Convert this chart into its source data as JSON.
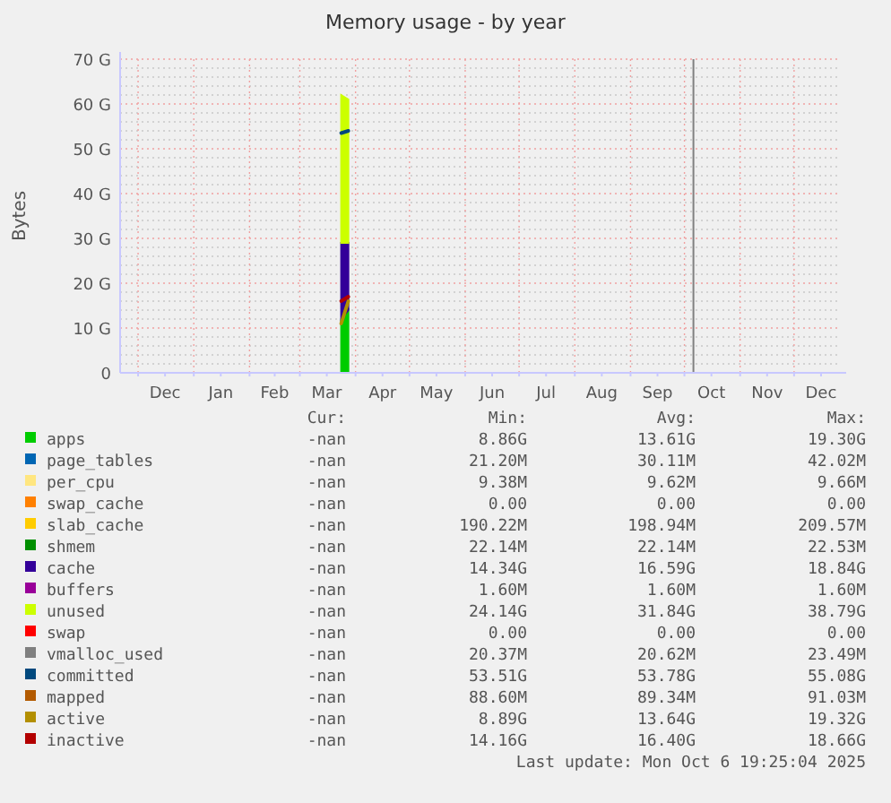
{
  "chart_data": {
    "type": "area",
    "stacked": true,
    "title": "Memory usage - by year",
    "ylabel": "Bytes",
    "x": [
      "2025-03-24",
      "2025-03-28"
    ],
    "xlim": [
      "2024-11-21",
      "2025-12-26"
    ],
    "xticks": [
      {
        "value": "2024-12-01",
        "label": null
      },
      {
        "value": "2024-12-16",
        "label": "Dec"
      },
      {
        "value": "2025-01-01",
        "label": null
      },
      {
        "value": "2025-01-16",
        "label": "Jan"
      },
      {
        "value": "2025-02-01",
        "label": null
      },
      {
        "value": "2025-02-15",
        "label": "Feb"
      },
      {
        "value": "2025-03-01",
        "label": null
      },
      {
        "value": "2025-03-16",
        "label": "Mar"
      },
      {
        "value": "2025-04-01",
        "label": null
      },
      {
        "value": "2025-04-16",
        "label": "Apr"
      },
      {
        "value": "2025-05-01",
        "label": null
      },
      {
        "value": "2025-05-16",
        "label": "May"
      },
      {
        "value": "2025-06-01",
        "label": null
      },
      {
        "value": "2025-06-16",
        "label": "Jun"
      },
      {
        "value": "2025-07-01",
        "label": null
      },
      {
        "value": "2025-07-16",
        "label": "Jul"
      },
      {
        "value": "2025-08-01",
        "label": null
      },
      {
        "value": "2025-08-16",
        "label": "Aug"
      },
      {
        "value": "2025-09-01",
        "label": null
      },
      {
        "value": "2025-09-16",
        "label": "Sep"
      },
      {
        "value": "2025-10-01",
        "label": null
      },
      {
        "value": "2025-10-16",
        "label": "Oct"
      },
      {
        "value": "2025-11-01",
        "label": null
      },
      {
        "value": "2025-11-16",
        "label": "Nov"
      },
      {
        "value": "2025-12-01",
        "label": null
      },
      {
        "value": "2025-12-16",
        "label": "Dec"
      }
    ],
    "ylim": [
      0,
      70
    ],
    "yticks": [
      {
        "value": 0,
        "label": "0"
      },
      {
        "value": 2,
        "label": null
      },
      {
        "value": 4,
        "label": null
      },
      {
        "value": 6,
        "label": null
      },
      {
        "value": 8,
        "label": null
      },
      {
        "value": 10,
        "label": "10 G"
      },
      {
        "value": 12,
        "label": null
      },
      {
        "value": 14,
        "label": null
      },
      {
        "value": 16,
        "label": null
      },
      {
        "value": 18,
        "label": null
      },
      {
        "value": 20,
        "label": "20 G"
      },
      {
        "value": 22,
        "label": null
      },
      {
        "value": 24,
        "label": null
      },
      {
        "value": 26,
        "label": null
      },
      {
        "value": 28,
        "label": null
      },
      {
        "value": 30,
        "label": "30 G"
      },
      {
        "value": 32,
        "label": null
      },
      {
        "value": 34,
        "label": null
      },
      {
        "value": 36,
        "label": null
      },
      {
        "value": 38,
        "label": null
      },
      {
        "value": 40,
        "label": "40 G"
      },
      {
        "value": 42,
        "label": null
      },
      {
        "value": 44,
        "label": null
      },
      {
        "value": 46,
        "label": null
      },
      {
        "value": 48,
        "label": null
      },
      {
        "value": 50,
        "label": "50 G"
      },
      {
        "value": 52,
        "label": null
      },
      {
        "value": 54,
        "label": null
      },
      {
        "value": 56,
        "label": null
      },
      {
        "value": 58,
        "label": null
      },
      {
        "value": 60,
        "label": "60 G"
      },
      {
        "value": 62,
        "label": null
      },
      {
        "value": 64,
        "label": null
      },
      {
        "value": 66,
        "label": null
      },
      {
        "value": 68,
        "label": null
      },
      {
        "value": 70,
        "label": "70 G"
      }
    ],
    "grid": true,
    "legend": "bottom",
    "ref_lines": [
      {
        "axis": "x",
        "value": "2025-10-06",
        "color": "#808080"
      }
    ],
    "series": [
      {
        "name": "apps",
        "color": "#00cc00",
        "values": [
          12,
          14
        ]
      },
      {
        "name": "page_tables",
        "color": "#0066b3",
        "values": [
          null,
          null
        ]
      },
      {
        "name": "per_cpu",
        "color": "#ffe680",
        "values": [
          null,
          null
        ]
      },
      {
        "name": "swap_cache",
        "color": "#ff8000",
        "values": [
          null,
          null
        ]
      },
      {
        "name": "slab_cache",
        "color": "#ffcc00",
        "values": [
          null,
          null
        ]
      },
      {
        "name": "shmem",
        "color": "#008f00",
        "values": [
          null,
          null
        ]
      },
      {
        "name": "cache",
        "color": "#330099",
        "values": [
          17,
          15
        ]
      },
      {
        "name": "buffers",
        "color": "#990099",
        "values": [
          null,
          null
        ]
      },
      {
        "name": "unused",
        "color": "#ccff00",
        "values": [
          33,
          32
        ]
      },
      {
        "name": "swap",
        "color": "#ff0000",
        "values": [
          null,
          null
        ]
      },
      {
        "name": "vmalloc_used",
        "type": "line",
        "color": "#808080",
        "values": [
          null,
          null
        ]
      },
      {
        "name": "committed",
        "type": "line",
        "color": "#00487d",
        "values": [
          53.5,
          54
        ]
      },
      {
        "name": "mapped",
        "type": "line",
        "color": "#b35a00",
        "values": [
          null,
          null
        ]
      },
      {
        "name": "active",
        "type": "line",
        "color": "#b38f00",
        "values": [
          11,
          16
        ]
      },
      {
        "name": "inactive",
        "type": "line",
        "color": "#b30000",
        "values": [
          16,
          17
        ]
      }
    ],
    "annotations": [
      "Cur:",
      "Min:",
      "Avg:",
      "Max:",
      "-nan",
      "8.86G",
      "13.61G",
      "19.30G",
      "-nan",
      "21.20M",
      "30.11M",
      "42.02M",
      "-nan",
      "9.38M",
      "9.62M",
      "9.66M",
      "-nan",
      "0.00",
      "0.00",
      "0.00",
      "-nan",
      "190.22M",
      "198.94M",
      "209.57M",
      "-nan",
      "22.14M",
      "22.14M",
      "22.53M",
      "-nan",
      "14.34G",
      "16.59G",
      "18.84G",
      "-nan",
      "1.60M",
      "1.60M",
      "1.60M",
      "-nan",
      "24.14G",
      "31.84G",
      "38.79G",
      "-nan",
      "0.00",
      "0.00",
      "0.00",
      "-nan",
      "20.37M",
      "20.62M",
      "23.49M",
      "-nan",
      "53.51G",
      "53.78G",
      "55.08G",
      "-nan",
      "88.60M",
      "89.34M",
      "91.03M",
      "-nan",
      "8.89G",
      "13.64G",
      "19.32G",
      "-nan",
      "14.16G",
      "16.40G",
      "18.66G",
      "Last update: Mon Oct  6 19:25:04 2025"
    ]
  }
}
